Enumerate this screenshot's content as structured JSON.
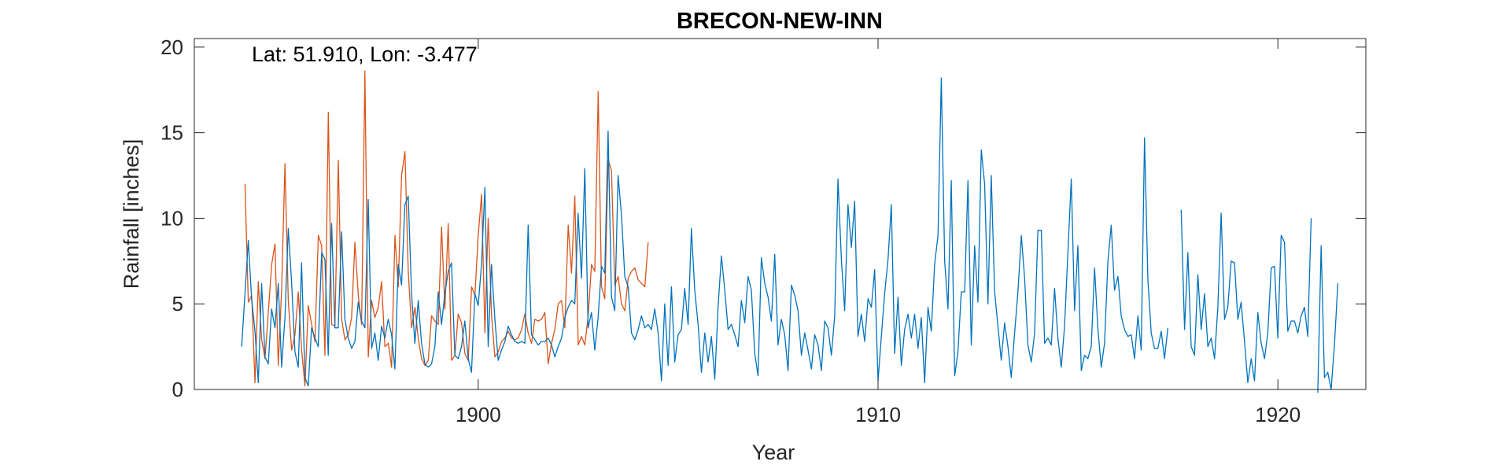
{
  "chart_data": {
    "type": "line",
    "title": "BRECON-NEW-INN",
    "xlabel": "Year",
    "ylabel": "Rainfall [inches]",
    "annotation": "Lat: 51.910, Lon: -3.477",
    "xlim": [
      1892.9,
      1922.2
    ],
    "ylim": [
      0,
      20.5
    ],
    "x_ticks": [
      1900,
      1910,
      1920
    ],
    "x_tick_labels": [
      "1900",
      "1910",
      "1920"
    ],
    "y_ticks": [
      0,
      5,
      10,
      15,
      20
    ],
    "y_tick_labels": [
      "0",
      "5",
      "10",
      "15",
      "20"
    ],
    "grid": false,
    "box": true,
    "series": [
      {
        "color": "#0072BD",
        "x_start": 1894.083,
        "x_step": 0.08333,
        "values": [
          2.5,
          5.6,
          8.7,
          5.3,
          3.4,
          0.4,
          6.2,
          1.9,
          1.5,
          4.7,
          3.6,
          6.2,
          1.3,
          4.2,
          9.4,
          6.3,
          2.2,
          1.3,
          7.4,
          0.7,
          0.2,
          3.6,
          3.0,
          2.5,
          8.0,
          7.6,
          2.0,
          9.7,
          3.6,
          3.6,
          9.2,
          4.1,
          3.0,
          2.4,
          2.8,
          5.1,
          4.0,
          3.6,
          11.1,
          2.4,
          3.3,
          1.7,
          3.7,
          3.0,
          4.1,
          3.2,
          1.2,
          7.3,
          6.1,
          10.8,
          11.3,
          5.6,
          2.7,
          5.2,
          2.7,
          1.5,
          1.3,
          1.5,
          2.5,
          5.7,
          3.8,
          5.6,
          6.9,
          7.4,
          2.0,
          1.8,
          2.5,
          4.0,
          1.8,
          1.0,
          5.6,
          4.9,
          7.3,
          11.8,
          2.5,
          7.3,
          4.1,
          1.7,
          2.3,
          2.8,
          3.7,
          3.2,
          2.8,
          2.7,
          2.8,
          2.7,
          9.6,
          3.2,
          2.9,
          2.6,
          2.8,
          2.8,
          3.0,
          2.6,
          1.9,
          2.5,
          3.0,
          4.2,
          4.8,
          5.2,
          5.0,
          10.3,
          6.5,
          12.9,
          3.6,
          4.5,
          2.3,
          4.2,
          7.2,
          6.8,
          15.1,
          5.4,
          4.6,
          12.5,
          10.2,
          6.6,
          6.0,
          3.3,
          2.9,
          3.5,
          4.3,
          3.6,
          3.8,
          3.5,
          4.7,
          3.3,
          0.5,
          5.0,
          1.4,
          6.0,
          1.6,
          3.2,
          3.5,
          5.9,
          3.8,
          9.4,
          5.8,
          3.8,
          1.0,
          3.3,
          1.6,
          3.1,
          0.6,
          4.8,
          7.8,
          5.8,
          3.5,
          3.8,
          3.2,
          2.5,
          5.2,
          3.9,
          6.6,
          5.8,
          2.1,
          0.8,
          7.7,
          6.2,
          5.4,
          4.0,
          7.9,
          2.6,
          4.1,
          3.2,
          1.1,
          6.1,
          5.5,
          4.6,
          2.0,
          3.3,
          2.3,
          1.2,
          3.2,
          2.6,
          1.1,
          4.0,
          3.6,
          2.0,
          4.3,
          12.3,
          7.6,
          4.6,
          10.8,
          8.3,
          11.0,
          3.1,
          4.4,
          2.8,
          5.3,
          4.8,
          7.0,
          0.5,
          3.1,
          5.6,
          7.6,
          10.8,
          2.1,
          5.4,
          1.4,
          3.5,
          4.4,
          3.0,
          4.4,
          2.4,
          4.2,
          0.4,
          4.8,
          3.4,
          7.3,
          9.0,
          18.2,
          7.5,
          4.7,
          12.2,
          0.8,
          2.2,
          5.7,
          5.7,
          12.2,
          2.6,
          8.4,
          5.1,
          14.0,
          12.0,
          5.0,
          12.5,
          5.7,
          3.7,
          1.7,
          3.9,
          2.5,
          0.7,
          3.3,
          5.7,
          9.0,
          6.5,
          2.6,
          1.6,
          3.3,
          9.3,
          9.3,
          2.7,
          3.0,
          2.6,
          5.9,
          3.0,
          1.3,
          3.7,
          8.0,
          12.3,
          4.6,
          8.4,
          1.1,
          2.0,
          1.8,
          2.5,
          7.1,
          3.5,
          1.3,
          2.7,
          7.5,
          9.6,
          5.8,
          6.6,
          4.3,
          3.5,
          3.1,
          3.2,
          1.8,
          4.3,
          2.3,
          14.7,
          6.4,
          3.3,
          2.4,
          2.4,
          3.4,
          1.8,
          3.6,
          null,
          null,
          null,
          10.5,
          3.5,
          8.0,
          2.5,
          2.0,
          6.7,
          3.5,
          5.6,
          2.5,
          3.0,
          1.8,
          4.8,
          10.3,
          4.1,
          4.8,
          7.5,
          7.4,
          4.1,
          5.1,
          2.8,
          0.4,
          1.8,
          0.5,
          4.5,
          2.7,
          1.8,
          3.3,
          7.1,
          7.2,
          3.0,
          9.0,
          8.6,
          3.4,
          4.0,
          4.0,
          3.3,
          4.3,
          4.8,
          3.1,
          10.0,
          null,
          -0.2,
          8.4,
          0.7,
          1.0,
          0.0,
          2.6,
          6.2
        ]
      },
      {
        "color": "#D95319",
        "x_start": 1894.167,
        "x_step": 0.08333,
        "values": [
          12.0,
          5.1,
          5.5,
          0.4,
          6.3,
          2.9,
          1.8,
          4.5,
          7.3,
          8.5,
          1.4,
          5.9,
          13.2,
          5.2,
          2.3,
          3.2,
          5.7,
          2.3,
          0.2,
          4.9,
          3.8,
          2.8,
          9.0,
          8.4,
          2.0,
          16.2,
          3.8,
          3.7,
          13.4,
          4.1,
          2.9,
          3.2,
          4.2,
          8.6,
          5.5,
          3.8,
          18.6,
          1.9,
          5.2,
          4.2,
          4.8,
          6.3,
          2.5,
          2.7,
          1.3,
          9.0,
          6.0,
          12.5,
          13.9,
          6.9,
          3.6,
          4.8,
          3.0,
          1.8,
          1.4,
          1.7,
          4.3,
          4.0,
          3.8,
          9.5,
          4.7,
          9.7,
          1.7,
          2.0,
          4.4,
          3.9,
          2.1,
          1.7,
          6.0,
          5.5,
          9.0,
          11.4,
          3.3,
          10.0,
          4.3,
          1.9,
          2.2,
          2.8,
          3.0,
          3.4,
          3.0,
          2.9,
          3.0,
          3.5,
          4.4,
          3.3,
          2.7,
          4.1,
          4.0,
          4.1,
          4.5,
          1.5,
          2.7,
          3.5,
          5.0,
          5.2,
          3.6,
          9.6,
          6.8,
          11.3,
          2.6,
          3.1,
          2.6,
          4.3,
          7.3,
          6.9,
          17.4,
          6.0,
          5.3,
          13.4,
          12.8,
          6.1,
          6.6,
          5.0,
          4.6,
          6.5,
          6.9,
          7.1,
          6.4,
          6.2,
          6.0,
          8.6
        ]
      }
    ]
  }
}
